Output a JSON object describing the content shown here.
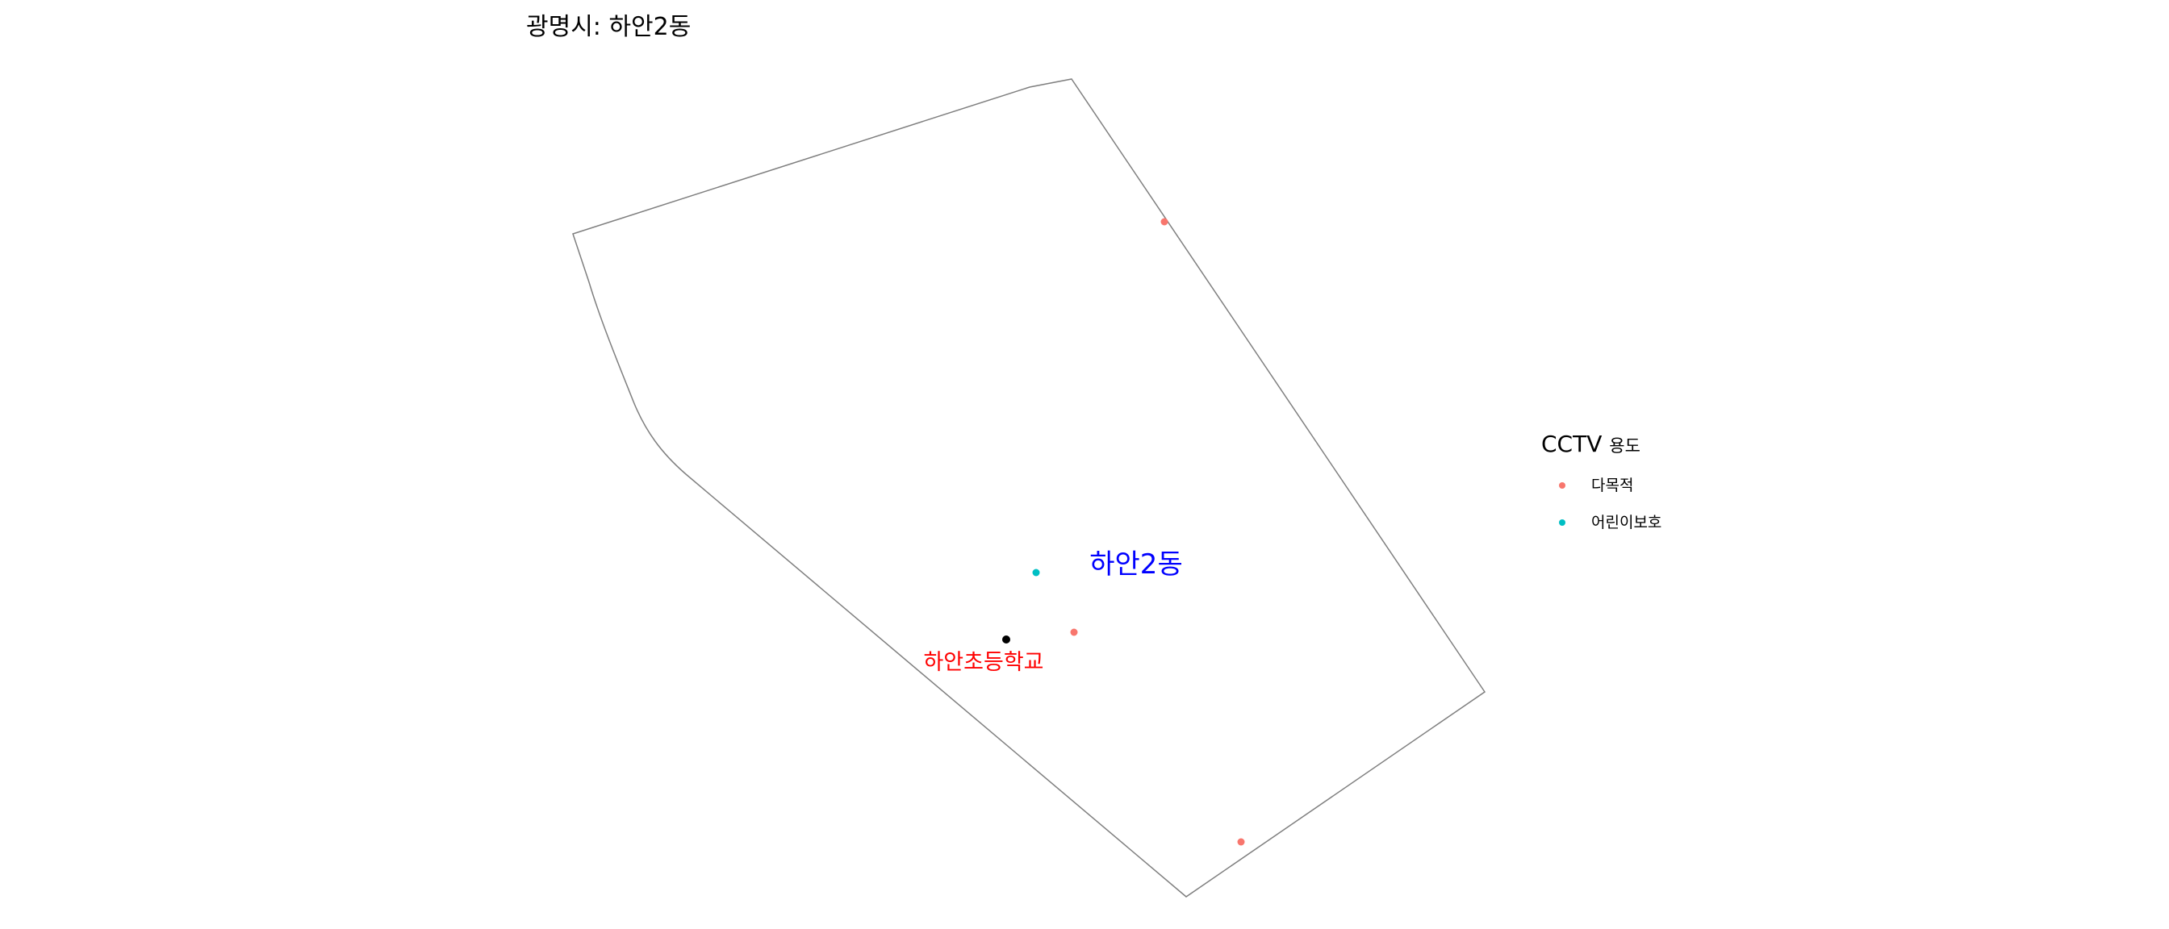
{
  "title": "광명시: 하안2동",
  "colors": {
    "multipurpose": "#F8766D",
    "child_protection": "#00BFC4",
    "school_point": "#000000",
    "school_label": "#FF0000",
    "district_label": "#0000FF",
    "boundary": "#7f7f7f"
  },
  "legend": {
    "title_main": "CCTV",
    "title_sub": "용도",
    "items": [
      {
        "label": "다목적",
        "color": "#F8766D"
      },
      {
        "label": "어린이보호",
        "color": "#00BFC4"
      }
    ]
  },
  "map": {
    "district_label": "하안2동",
    "school_label": "하안초등학교",
    "cctv_points": [
      {
        "type": "다목적"
      },
      {
        "type": "다목적"
      },
      {
        "type": "다목적"
      },
      {
        "type": "어린이보호"
      }
    ]
  }
}
